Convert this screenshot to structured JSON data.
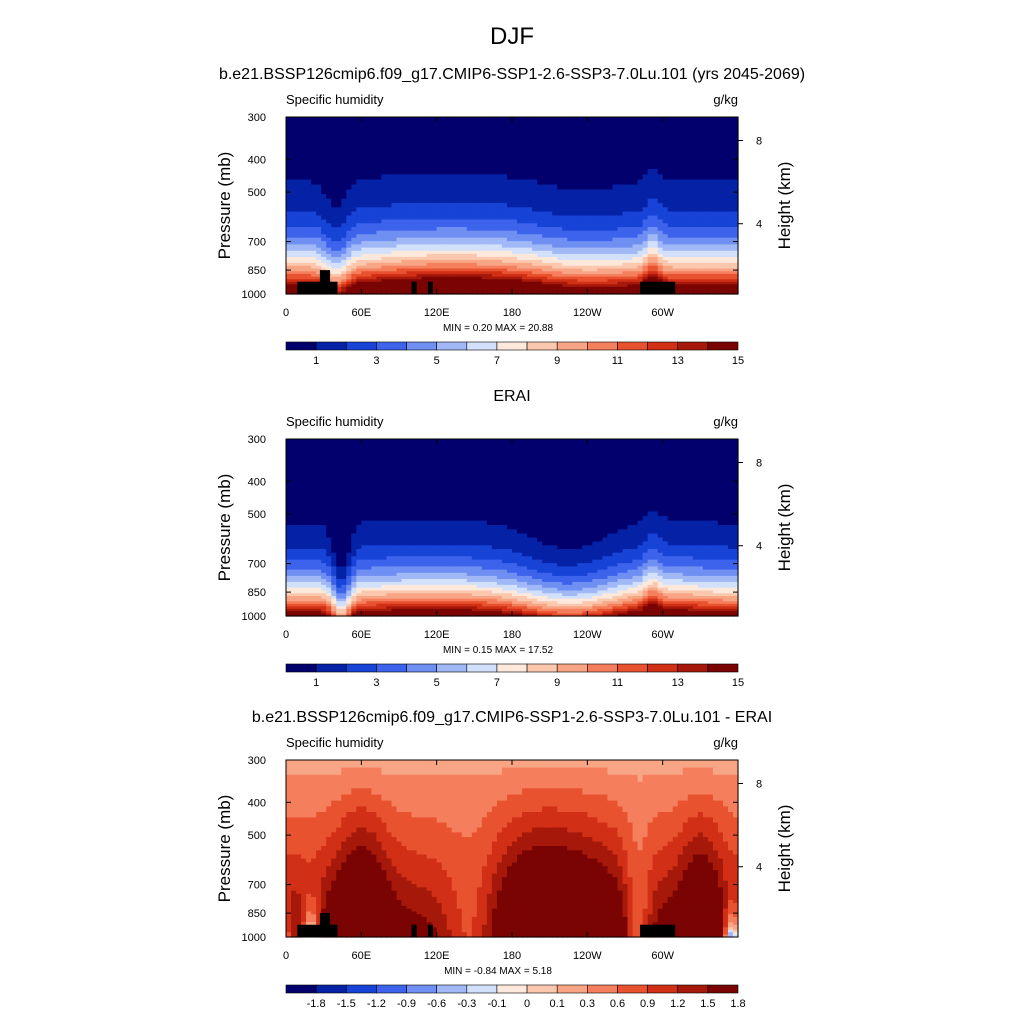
{
  "figure": {
    "title": "DJF",
    "colors": {
      "abs_scale": [
        "#02006d",
        "#0522a6",
        "#1743d6",
        "#3d63ec",
        "#6f8ff2",
        "#a1b8f6",
        "#d2e0fb",
        "#fde8dc",
        "#fbc8ae",
        "#f8a586",
        "#f57f5d",
        "#e9522f",
        "#d12f16",
        "#a6190a",
        "#7a0403"
      ],
      "diff_scale": [
        "#02006d",
        "#0522a6",
        "#1743d6",
        "#3d63ec",
        "#6f8ff2",
        "#a1b8f6",
        "#d2e0fb",
        "#fde8dc",
        "#fbc8ae",
        "#f8a586",
        "#f57f5d",
        "#e9522f",
        "#d12f16",
        "#a6190a",
        "#7a0403"
      ],
      "topo": "#000000"
    }
  },
  "chart_data": [
    {
      "type": "heatmap",
      "title": "b.e21.BSSP126cmip6.f09_g17.CMIP6-SSP1-2.6-SSP3-7.0Lu.101 (yrs 2045-2069)",
      "left_label": "Specific humidity",
      "right_label": "g/kg",
      "ylabel": "Pressure (mb)",
      "ylabel_right": "Height (km)",
      "xticks": [
        "0",
        "60E",
        "120E",
        "180",
        "120W",
        "60W"
      ],
      "xtick_lon": [
        0,
        60,
        120,
        180,
        240,
        300
      ],
      "xlim": [
        0,
        360
      ],
      "yticks": [
        "300",
        "400",
        "500",
        "700",
        "850",
        "1000"
      ],
      "ytick_values": [
        300,
        400,
        500,
        700,
        850,
        1000
      ],
      "ylim": [
        300,
        1000
      ],
      "right_ticks": [
        "8",
        "4"
      ],
      "stats": "MIN =   0.20  MAX =  20.88",
      "min": 0.2,
      "max": 20.88,
      "colorbar_labels": [
        "1",
        "3",
        "5",
        "7",
        "9",
        "11",
        "13",
        "15"
      ],
      "colorbar_levels": [
        1,
        2,
        3,
        4,
        5,
        6,
        7,
        8,
        9,
        10,
        11,
        12,
        13,
        14,
        15
      ],
      "kind": "model"
    },
    {
      "type": "heatmap",
      "title": "ERAI",
      "left_label": "Specific humidity",
      "right_label": "g/kg",
      "ylabel": "Pressure (mb)",
      "ylabel_right": "Height (km)",
      "xticks": [
        "0",
        "60E",
        "120E",
        "180",
        "120W",
        "60W"
      ],
      "xtick_lon": [
        0,
        60,
        120,
        180,
        240,
        300
      ],
      "xlim": [
        0,
        360
      ],
      "yticks": [
        "300",
        "400",
        "500",
        "700",
        "850",
        "1000"
      ],
      "ytick_values": [
        300,
        400,
        500,
        700,
        850,
        1000
      ],
      "ylim": [
        300,
        1000
      ],
      "right_ticks": [
        "8",
        "4"
      ],
      "stats": "MIN =   0.15  MAX =  17.52",
      "min": 0.15,
      "max": 17.52,
      "colorbar_labels": [
        "1",
        "3",
        "5",
        "7",
        "9",
        "11",
        "13",
        "15"
      ],
      "colorbar_levels": [
        1,
        2,
        3,
        4,
        5,
        6,
        7,
        8,
        9,
        10,
        11,
        12,
        13,
        14,
        15
      ],
      "kind": "obs"
    },
    {
      "type": "heatmap",
      "title": "b.e21.BSSP126cmip6.f09_g17.CMIP6-SSP1-2.6-SSP3-7.0Lu.101 - ERAI",
      "left_label": "Specific humidity",
      "right_label": "g/kg",
      "ylabel": "Pressure (mb)",
      "ylabel_right": "Height (km)",
      "xticks": [
        "0",
        "60E",
        "120E",
        "180",
        "120W",
        "60W"
      ],
      "xtick_lon": [
        0,
        60,
        120,
        180,
        240,
        300
      ],
      "xlim": [
        0,
        360
      ],
      "yticks": [
        "300",
        "400",
        "500",
        "700",
        "850",
        "1000"
      ],
      "ytick_values": [
        300,
        400,
        500,
        700,
        850,
        1000
      ],
      "ylim": [
        300,
        1000
      ],
      "right_ticks": [
        "8",
        "4"
      ],
      "stats": "MIN =  -0.84  MAX =   5.18",
      "min": -0.84,
      "max": 5.18,
      "colorbar_labels": [
        "-1.8",
        "-1.5",
        "-1.2",
        "-0.9",
        "-0.6",
        "-0.3",
        "-0.1",
        "0",
        "0.1",
        "0.3",
        "0.6",
        "0.9",
        "1.2",
        "1.5",
        "1.8"
      ],
      "colorbar_levels": [
        -1.8,
        -1.5,
        -1.2,
        -0.9,
        -0.6,
        -0.3,
        -0.1,
        0,
        0.1,
        0.3,
        0.6,
        0.9,
        1.2,
        1.5,
        1.8
      ],
      "kind": "diff"
    }
  ]
}
